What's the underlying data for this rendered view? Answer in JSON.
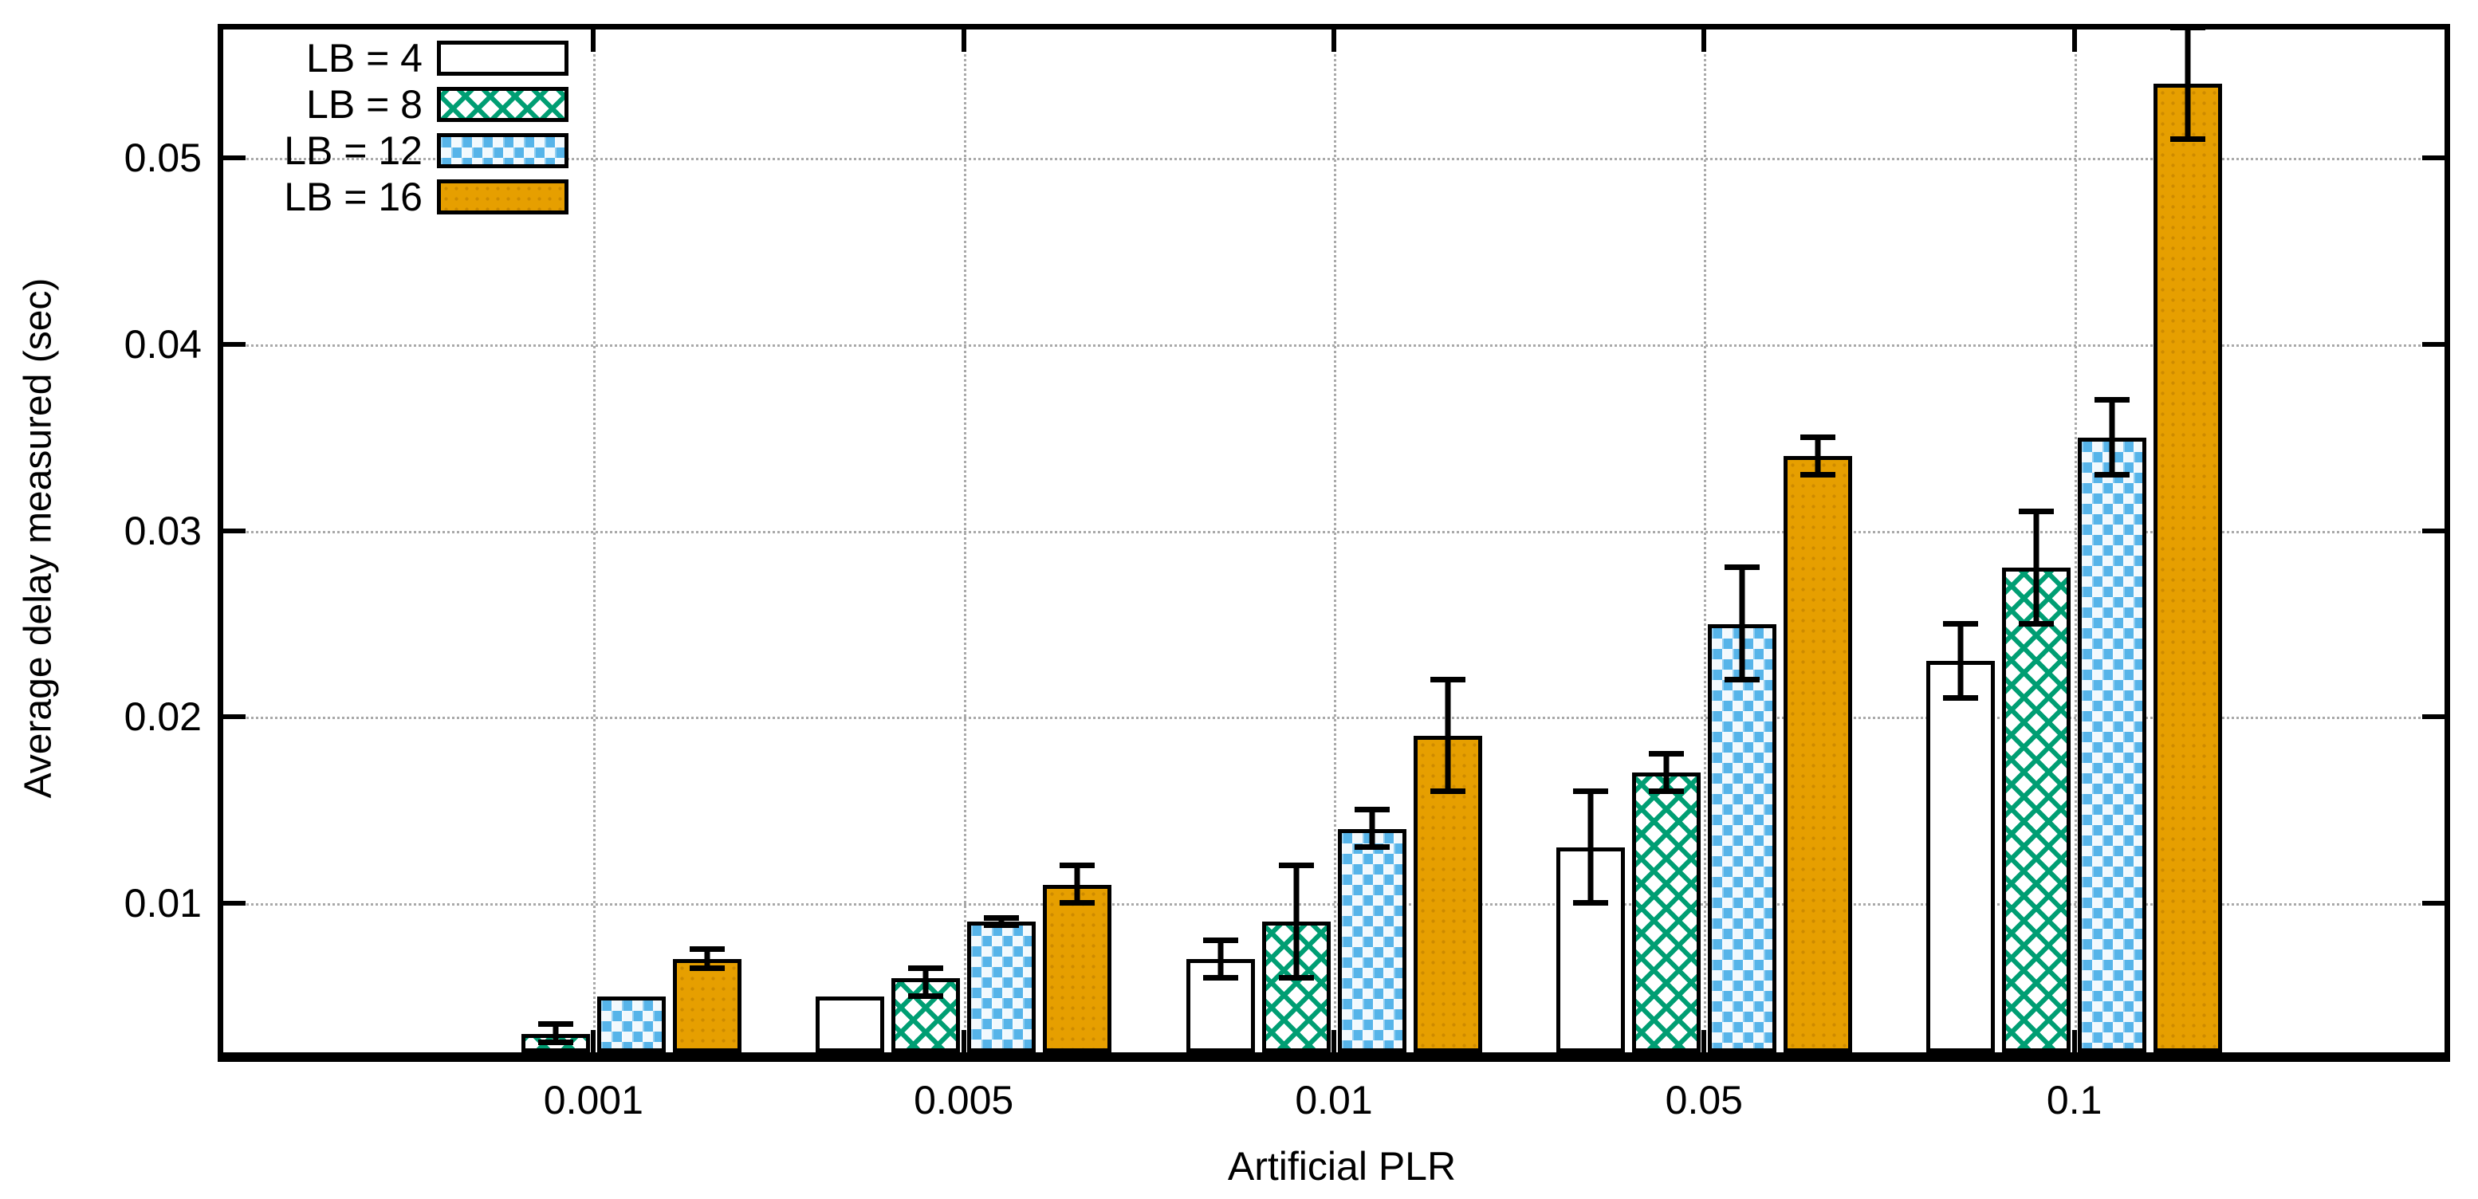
{
  "chart_data": {
    "type": "bar",
    "title": "",
    "xlabel": "Artificial PLR",
    "ylabel": "Average delay measured (sec)",
    "categories": [
      "0.001",
      "0.005",
      "0.01",
      "0.05",
      "0.1"
    ],
    "series": [
      {
        "name": "LB = 4",
        "pattern": "plain",
        "color": "#ffffff",
        "values": [
          0.002,
          0.005,
          0.007,
          0.013,
          0.023
        ],
        "errors": [
          [
            null,
            null
          ],
          [
            null,
            null
          ],
          [
            0.006,
            0.008
          ],
          [
            0.01,
            0.016
          ],
          [
            0.021,
            0.025
          ]
        ]
      },
      {
        "name": "LB = 8",
        "pattern": "crosshatch",
        "color": "#009E73",
        "values": [
          0.003,
          0.006,
          0.009,
          0.017,
          0.028
        ],
        "errors": [
          [
            0.0025,
            0.0035
          ],
          [
            0.005,
            0.0065
          ],
          [
            0.006,
            0.012
          ],
          [
            0.016,
            0.018
          ],
          [
            0.025,
            0.031
          ]
        ]
      },
      {
        "name": "LB = 12",
        "pattern": "weave",
        "color": "#56B4E9",
        "values": [
          0.005,
          0.009,
          0.014,
          0.025,
          0.035
        ],
        "errors": [
          [
            null,
            null
          ],
          [
            0.0088,
            0.0092
          ],
          [
            0.013,
            0.015
          ],
          [
            0.022,
            0.028
          ],
          [
            0.033,
            0.037
          ]
        ]
      },
      {
        "name": "LB = 16",
        "pattern": "solid",
        "color": "#E69F00",
        "values": [
          0.007,
          0.011,
          0.019,
          0.034,
          0.054
        ],
        "errors": [
          [
            0.0065,
            0.0075
          ],
          [
            0.01,
            0.012
          ],
          [
            0.016,
            0.022
          ],
          [
            0.033,
            0.035
          ],
          [
            0.051,
            0.057
          ]
        ]
      }
    ],
    "yticks": [
      0.01,
      0.02,
      0.03,
      0.04,
      0.05
    ],
    "ylim": [
      0.002,
      0.0569
    ],
    "grid": true,
    "grid_color": "#a9a9a9",
    "axis_color": "#000000",
    "legend_position": "top-left",
    "error_bar_color": "#000000"
  }
}
